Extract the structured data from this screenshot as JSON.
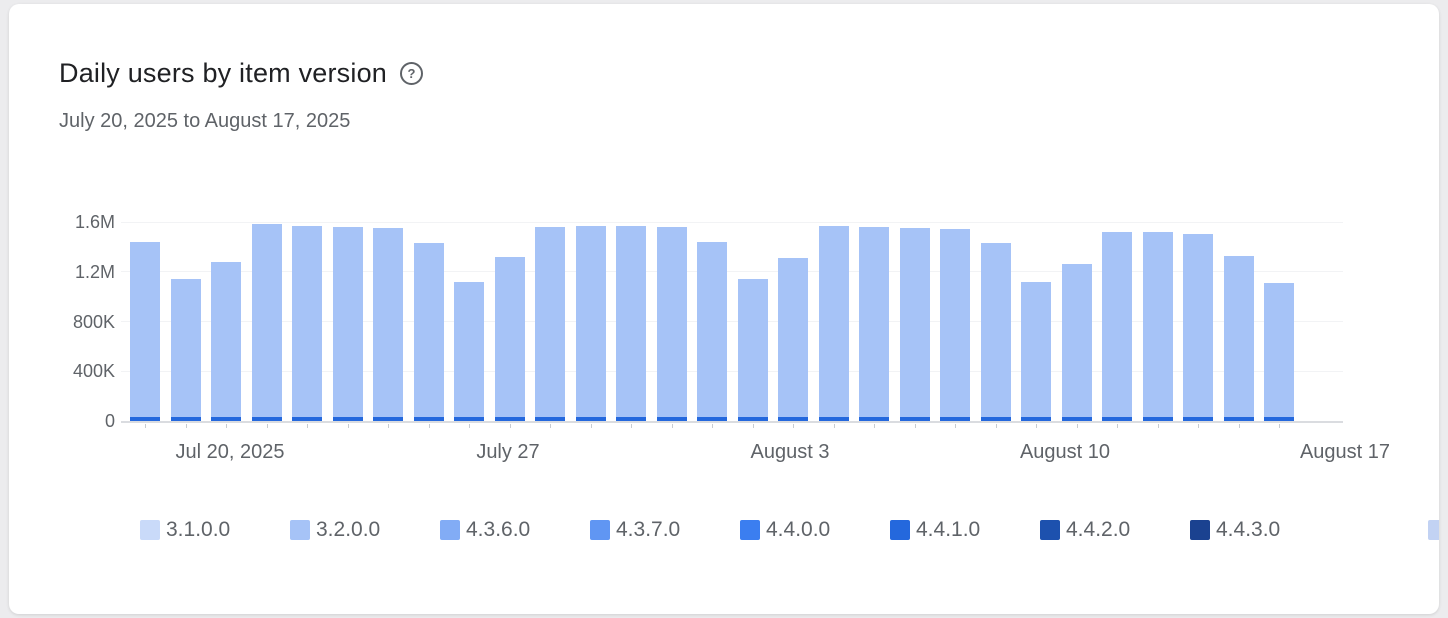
{
  "card": {
    "title": "Daily users by item version",
    "help_icon": "?",
    "subtitle": "July 20, 2025 to August 17, 2025"
  },
  "chart_data": {
    "type": "bar",
    "stacked": true,
    "title": "Daily users by item version",
    "date_range": "July 20, 2025 to August 17, 2025",
    "ylim": [
      0,
      1600000
    ],
    "grid": "horizontal-faint",
    "legend_position": "bottom",
    "yticks": [
      {
        "value": 0,
        "label": "0"
      },
      {
        "value": 400000,
        "label": "400K"
      },
      {
        "value": 800000,
        "label": "800K"
      },
      {
        "value": 1200000,
        "label": "1.2M"
      },
      {
        "value": 1600000,
        "label": "1.6M"
      }
    ],
    "xtick_labels": [
      "Jul 20, 2025",
      "July 27",
      "August 3",
      "August 10",
      "August 17"
    ],
    "x": [
      "Jul 20",
      "Jul 21",
      "Jul 22",
      "Jul 23",
      "Jul 24",
      "Jul 25",
      "Jul 26",
      "Jul 27",
      "Jul 28",
      "Jul 29",
      "Jul 30",
      "Jul 31",
      "Aug 1",
      "Aug 2",
      "Aug 3",
      "Aug 4",
      "Aug 5",
      "Aug 6",
      "Aug 7",
      "Aug 8",
      "Aug 9",
      "Aug 10",
      "Aug 11",
      "Aug 12",
      "Aug 13",
      "Aug 14",
      "Aug 15",
      "Aug 16",
      "Aug 17"
    ],
    "totals": [
      1440000,
      1140000,
      1280000,
      1580000,
      1570000,
      1560000,
      1550000,
      1430000,
      1120000,
      1320000,
      1560000,
      1570000,
      1570000,
      1560000,
      1440000,
      1140000,
      1310000,
      1570000,
      1560000,
      1550000,
      1540000,
      1430000,
      1120000,
      1260000,
      1520000,
      1520000,
      1500000,
      1330000,
      1110000
    ],
    "series": [
      {
        "name": "3.2.0.0",
        "color": "#a6c3f7",
        "values": [
          1410000,
          1110000,
          1250000,
          1550000,
          1540000,
          1530000,
          1520000,
          1400000,
          1090000,
          1290000,
          1530000,
          1540000,
          1540000,
          1530000,
          1410000,
          1110000,
          1280000,
          1540000,
          1530000,
          1520000,
          1510000,
          1400000,
          1090000,
          1230000,
          1490000,
          1490000,
          1470000,
          1300000,
          1080000
        ]
      },
      {
        "name": "4.4.1.0",
        "color": "#2468dd",
        "values": [
          30000,
          30000,
          30000,
          30000,
          30000,
          30000,
          30000,
          30000,
          30000,
          30000,
          30000,
          30000,
          30000,
          30000,
          30000,
          30000,
          30000,
          30000,
          30000,
          30000,
          30000,
          30000,
          30000,
          30000,
          30000,
          30000,
          30000,
          30000,
          30000
        ]
      }
    ],
    "legend": [
      {
        "label": "3.1.0.0",
        "color": "#c9daf9"
      },
      {
        "label": "3.2.0.0",
        "color": "#a6c3f7"
      },
      {
        "label": "4.3.6.0",
        "color": "#82acf5"
      },
      {
        "label": "4.3.7.0",
        "color": "#6096f3"
      },
      {
        "label": "4.4.0.0",
        "color": "#3b7ef0"
      },
      {
        "label": "4.4.1.0",
        "color": "#2468dd"
      },
      {
        "label": "4.4.2.0",
        "color": "#1d51ae"
      },
      {
        "label": "4.4.3.0",
        "color": "#1b4290"
      },
      {
        "label": "",
        "color": "#c2d2f3",
        "partial": true
      }
    ]
  }
}
